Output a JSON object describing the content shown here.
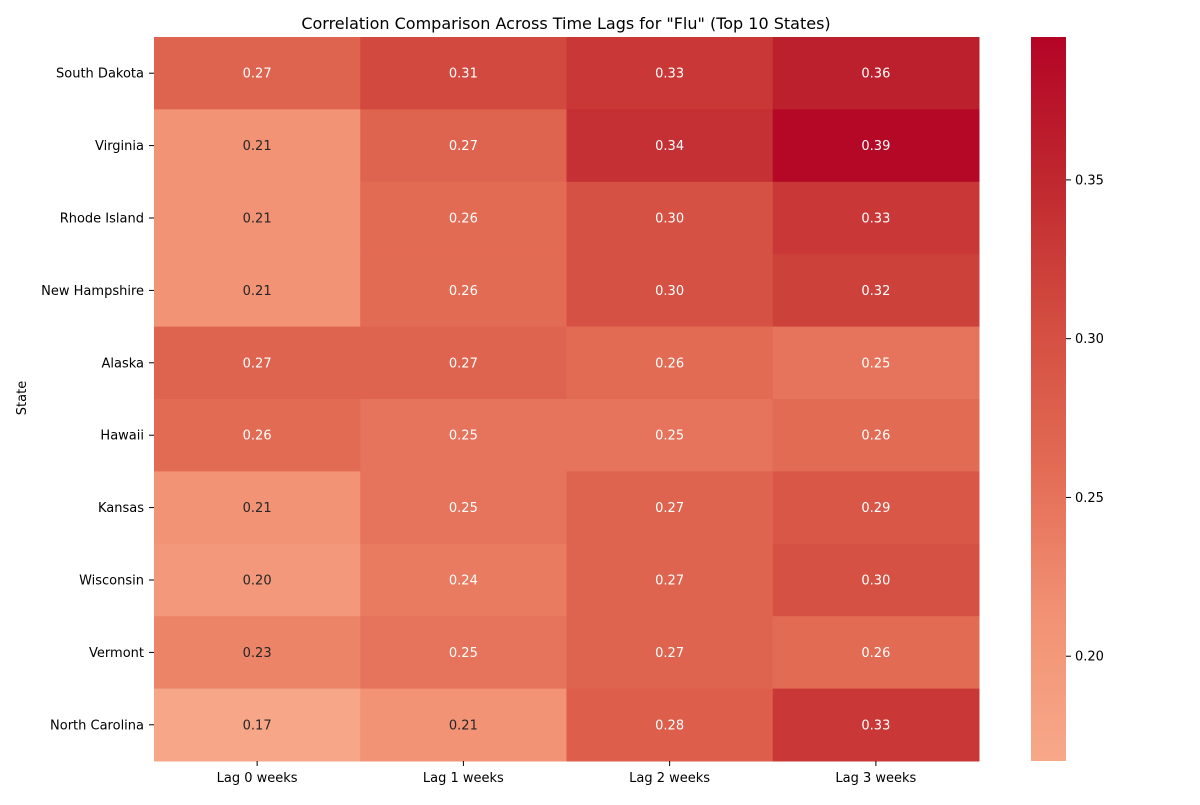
{
  "chart_data": {
    "type": "heatmap",
    "title": "Correlation Comparison Across Time Lags for \"Flu\" (Top 10 States)",
    "xlabel": "",
    "ylabel": "State",
    "columns": [
      "Lag 0 weeks",
      "Lag 1 weeks",
      "Lag 2 weeks",
      "Lag 3 weeks"
    ],
    "rows": [
      "South Dakota",
      "Virginia",
      "Rhode Island",
      "New Hampshire",
      "Alaska",
      "Hawaii",
      "Kansas",
      "Wisconsin",
      "Vermont",
      "North Carolina"
    ],
    "values": [
      [
        0.27,
        0.31,
        0.33,
        0.36
      ],
      [
        0.21,
        0.27,
        0.34,
        0.39
      ],
      [
        0.21,
        0.26,
        0.3,
        0.33
      ],
      [
        0.21,
        0.26,
        0.3,
        0.32
      ],
      [
        0.27,
        0.27,
        0.26,
        0.25
      ],
      [
        0.26,
        0.25,
        0.25,
        0.26
      ],
      [
        0.21,
        0.25,
        0.27,
        0.29
      ],
      [
        0.2,
        0.24,
        0.27,
        0.3
      ],
      [
        0.23,
        0.25,
        0.27,
        0.26
      ],
      [
        0.17,
        0.21,
        0.28,
        0.33
      ]
    ],
    "value_format_decimals": 2,
    "colorbar": {
      "vmin": 0.167,
      "vmax": 0.395,
      "ticks": [
        0.2,
        0.25,
        0.3,
        0.35
      ],
      "tick_labels": [
        "0.20",
        "0.25",
        "0.30",
        "0.35"
      ],
      "colormap": "coolwarm (upper half)",
      "color_stops": [
        "#f7a889",
        "#f29274",
        "#e36c55",
        "#d44e41",
        "#c0282f",
        "#b40426"
      ]
    }
  }
}
